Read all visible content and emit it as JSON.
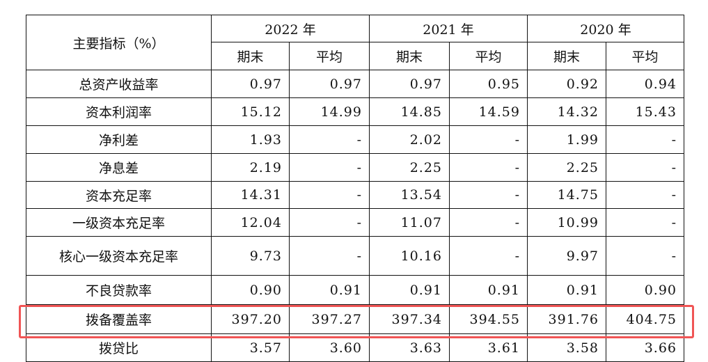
{
  "header": {
    "indicator_label": "主要指标（%）",
    "years": [
      "2022 年",
      "2021 年",
      "2020 年"
    ],
    "sub_labels": [
      "期末",
      "平均"
    ]
  },
  "rows": [
    {
      "label": "总资产收益率",
      "values": [
        "0.97",
        "0.97",
        "0.97",
        "0.95",
        "0.92",
        "0.94"
      ]
    },
    {
      "label": "资本利润率",
      "values": [
        "15.12",
        "14.99",
        "14.85",
        "14.59",
        "14.32",
        "15.43"
      ]
    },
    {
      "label": "净利差",
      "values": [
        "1.93",
        "-",
        "2.02",
        "-",
        "1.99",
        "-"
      ]
    },
    {
      "label": "净息差",
      "values": [
        "2.19",
        "-",
        "2.25",
        "-",
        "2.25",
        "-"
      ]
    },
    {
      "label": "资本充足率",
      "values": [
        "14.31",
        "-",
        "13.54",
        "-",
        "14.75",
        "-"
      ]
    },
    {
      "label": "一级资本充足率",
      "values": [
        "12.04",
        "-",
        "11.07",
        "-",
        "10.99",
        "-"
      ]
    },
    {
      "label": "核心一级资本充足率",
      "values": [
        "9.73",
        "-",
        "10.16",
        "-",
        "9.97",
        "-"
      ]
    },
    {
      "label": "不良贷款率",
      "values": [
        "0.90",
        "0.91",
        "0.91",
        "0.91",
        "0.91",
        "0.90"
      ]
    },
    {
      "label": "拨备覆盖率",
      "values": [
        "397.20",
        "397.27",
        "397.34",
        "394.55",
        "391.76",
        "404.75"
      ]
    },
    {
      "label": "拨贷比",
      "values": [
        "3.57",
        "3.60",
        "3.63",
        "3.61",
        "3.58",
        "3.66"
      ]
    }
  ],
  "highlight_color": "#f05555",
  "highlighted_row": "拨备覆盖率"
}
